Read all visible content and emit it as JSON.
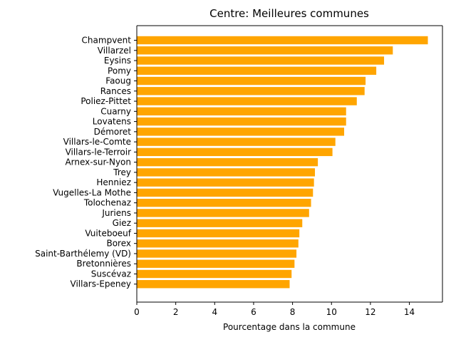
{
  "chart_data": {
    "type": "bar",
    "orientation": "horizontal",
    "title": "Centre: Meilleures communes",
    "xlabel": "Pourcentage dans la commune",
    "ylabel": "",
    "xlim": [
      0,
      15.7
    ],
    "xticks": [
      "0",
      "2",
      "4",
      "6",
      "8",
      "10",
      "12",
      "14"
    ],
    "bar_color": "#ffa500",
    "grid": false,
    "categories": [
      "Champvent",
      "Villarzel",
      "Eysins",
      "Pomy",
      "Faoug",
      "Rances",
      "Poliez-Pittet",
      "Cuarny",
      "Lovatens",
      "Démoret",
      "Villars-le-Comte",
      "Villars-le-Terroir",
      "Arnex-sur-Nyon",
      "Trey",
      "Henniez",
      "Vugelles-La Mothe",
      "Tolochenaz",
      "Juriens",
      "Giez",
      "Vuiteboeuf",
      "Borex",
      "Saint-Barthélemy (VD)",
      "Bretonnières",
      "Suscévaz",
      "Villars-Epeney"
    ],
    "values": [
      14.95,
      13.15,
      12.7,
      12.3,
      11.75,
      11.7,
      11.3,
      10.75,
      10.75,
      10.65,
      10.2,
      10.05,
      9.3,
      9.15,
      9.1,
      9.05,
      8.95,
      8.85,
      8.5,
      8.35,
      8.3,
      8.2,
      8.1,
      7.95,
      7.85
    ]
  }
}
